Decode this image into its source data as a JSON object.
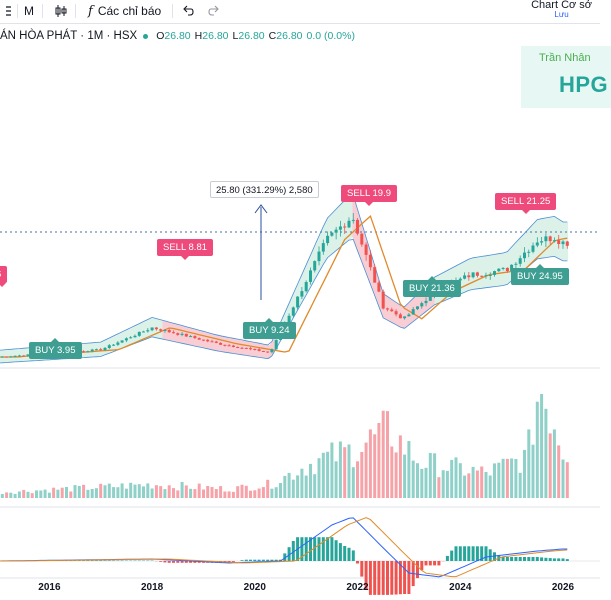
{
  "toolbar": {
    "interval": "M",
    "indicators_label": "Các chỉ báo",
    "layout_label": "Chart Cơ sở",
    "save_label": "Lưu"
  },
  "legend": {
    "title": "ÁN HÒA PHÁT · 1M · HSX",
    "o_label": "O",
    "o": "26.80",
    "h_label": "H",
    "h": "26.80",
    "l_label": "L",
    "l": "26.80",
    "c_label": "C",
    "c": "26.80",
    "change": "0.0 (0.0%)"
  },
  "brand": {
    "name": "Trần Nhân",
    "ticker": "HPG"
  },
  "measure_label": "25.80 (331.29%) 2,580",
  "signals": [
    {
      "type": "sell",
      "label": "SELL 8.81"
    },
    {
      "type": "sell",
      "label": "SELL 19.9"
    },
    {
      "type": "sell",
      "label": "SELL 21.25"
    },
    {
      "type": "buy",
      "label": "BUY 3.95"
    },
    {
      "type": "buy",
      "label": "BUY 9.24"
    },
    {
      "type": "buy",
      "label": "BUY 21.36"
    },
    {
      "type": "buy",
      "label": "BUY 24.95"
    }
  ],
  "edge_label": "6",
  "colors": {
    "up": "#26a69a",
    "down": "#ef5350",
    "buy_zone": "#d8efe4",
    "sell_zone": "#f7c9cf",
    "ma": "#e08a2a",
    "band": "#4a8fd6",
    "macd": "#2962ff"
  },
  "chart_data": {
    "type": "candlestick",
    "x_ticks": [
      "2016",
      "2018",
      "2020",
      "2022",
      "2024",
      "2026"
    ],
    "price_keypoints": [
      [
        2015.0,
        2.6
      ],
      [
        2017.0,
        3.6
      ],
      [
        2018.0,
        6.6
      ],
      [
        2019.3,
        4.4
      ],
      [
        2020.3,
        3.2
      ],
      [
        2021.4,
        18.6
      ],
      [
        2021.9,
        21.8
      ],
      [
        2022.5,
        9.5
      ],
      [
        2022.9,
        7.8
      ],
      [
        2023.5,
        11.5
      ],
      [
        2024.2,
        13.8
      ],
      [
        2024.9,
        14.5
      ],
      [
        2025.5,
        18.5
      ],
      [
        2025.83,
        18.9
      ],
      [
        2026.0,
        18.2
      ]
    ],
    "volume_keypoints": [
      [
        2015.0,
        0.05
      ],
      [
        2018.0,
        0.12
      ],
      [
        2019.5,
        0.08
      ],
      [
        2020.3,
        0.12
      ],
      [
        2021.2,
        0.33
      ],
      [
        2021.9,
        0.42
      ],
      [
        2022.6,
        0.6
      ],
      [
        2023.2,
        0.32
      ],
      [
        2024.5,
        0.22
      ],
      [
        2025.3,
        0.36
      ],
      [
        2025.55,
        1.0
      ],
      [
        2025.9,
        0.6
      ],
      [
        2026.0,
        0.42
      ]
    ],
    "macd_keypoints": [
      [
        2015.0,
        0.0
      ],
      [
        2018.0,
        0.05
      ],
      [
        2019.5,
        -0.05
      ],
      [
        2020.5,
        0.0
      ],
      [
        2021.5,
        0.9
      ],
      [
        2021.9,
        1.1
      ],
      [
        2022.6,
        0.2
      ],
      [
        2023.0,
        -0.3
      ],
      [
        2023.6,
        -0.4
      ],
      [
        2024.5,
        0.1
      ],
      [
        2025.5,
        0.25
      ],
      [
        2026.0,
        0.3
      ]
    ],
    "buy_zones": [
      [
        2015.0,
        2018.2
      ],
      [
        2020.4,
        2021.9
      ],
      [
        2023.5,
        2026.1
      ]
    ],
    "sell_zones": [
      [
        2018.2,
        2020.4
      ],
      [
        2021.9,
        2023.5
      ]
    ]
  }
}
